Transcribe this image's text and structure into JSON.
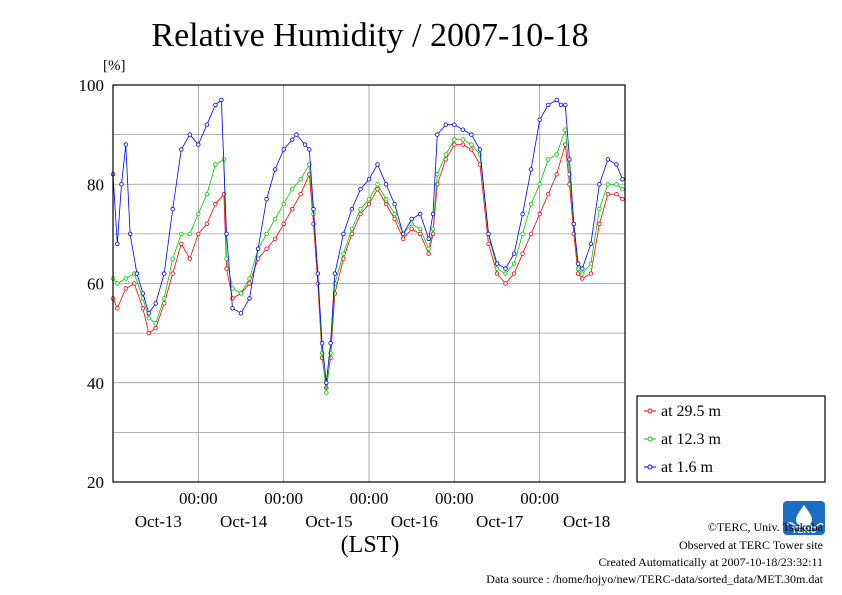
{
  "chart_data": {
    "type": "line",
    "title": "Relative Humidity / 2007-10-18",
    "ylabel": "[%]",
    "xlabel": "(LST)",
    "ylim": [
      20,
      100
    ],
    "yticks": [
      "20",
      "40",
      "60",
      "80",
      "100"
    ],
    "xlim": [
      0,
      6
    ],
    "xticks": [
      {
        "x": 1,
        "time": "00:00",
        "date": "Oct-13"
      },
      {
        "x": 2,
        "time": "00:00",
        "date": "Oct-14"
      },
      {
        "x": 3,
        "time": "00:00",
        "date": "Oct-15"
      },
      {
        "x": 4,
        "time": "00:00",
        "date": "Oct-16"
      },
      {
        "x": 5,
        "time": "00:00",
        "date": "Oct-17"
      }
    ],
    "extra_date_label": {
      "x": 5.55,
      "date": "Oct-18"
    },
    "grid": true,
    "legend_position": "lower-right-outside",
    "series": [
      {
        "name": "at 29.5 m",
        "color": "#ff0000",
        "points": [
          [
            0,
            57
          ],
          [
            0.05,
            55
          ],
          [
            0.15,
            59
          ],
          [
            0.25,
            60
          ],
          [
            0.35,
            55
          ],
          [
            0.42,
            50
          ],
          [
            0.5,
            51
          ],
          [
            0.6,
            56
          ],
          [
            0.7,
            62
          ],
          [
            0.8,
            68
          ],
          [
            0.9,
            65
          ],
          [
            1.0,
            70
          ],
          [
            1.1,
            72
          ],
          [
            1.2,
            76
          ],
          [
            1.3,
            78
          ],
          [
            1.33,
            63
          ],
          [
            1.4,
            57
          ],
          [
            1.5,
            58
          ],
          [
            1.6,
            60
          ],
          [
            1.7,
            65
          ],
          [
            1.8,
            67
          ],
          [
            1.9,
            69
          ],
          [
            2.0,
            72
          ],
          [
            2.1,
            75
          ],
          [
            2.2,
            78
          ],
          [
            2.3,
            82
          ],
          [
            2.35,
            72
          ],
          [
            2.4,
            60
          ],
          [
            2.45,
            45
          ],
          [
            2.5,
            39
          ],
          [
            2.55,
            45
          ],
          [
            2.6,
            58
          ],
          [
            2.7,
            65
          ],
          [
            2.8,
            70
          ],
          [
            2.9,
            74
          ],
          [
            3.0,
            76
          ],
          [
            3.1,
            79
          ],
          [
            3.2,
            76
          ],
          [
            3.3,
            73
          ],
          [
            3.4,
            69
          ],
          [
            3.5,
            71
          ],
          [
            3.6,
            70
          ],
          [
            3.7,
            66
          ],
          [
            3.75,
            70
          ],
          [
            3.8,
            80
          ],
          [
            3.9,
            85
          ],
          [
            4.0,
            88
          ],
          [
            4.1,
            88
          ],
          [
            4.2,
            87
          ],
          [
            4.3,
            84
          ],
          [
            4.4,
            68
          ],
          [
            4.5,
            62
          ],
          [
            4.6,
            60
          ],
          [
            4.7,
            62
          ],
          [
            4.8,
            66
          ],
          [
            4.9,
            70
          ],
          [
            5.0,
            74
          ],
          [
            5.1,
            78
          ],
          [
            5.2,
            82
          ],
          [
            5.3,
            88
          ],
          [
            5.35,
            80
          ],
          [
            5.4,
            70
          ],
          [
            5.45,
            62
          ],
          [
            5.5,
            61
          ],
          [
            5.6,
            62
          ],
          [
            5.7,
            72
          ],
          [
            5.8,
            78
          ],
          [
            5.9,
            78
          ],
          [
            5.97,
            77
          ]
        ]
      },
      {
        "name": "at 12.3 m",
        "color": "#00cc00",
        "points": [
          [
            0,
            61
          ],
          [
            0.05,
            60
          ],
          [
            0.15,
            61
          ],
          [
            0.25,
            62
          ],
          [
            0.35,
            57
          ],
          [
            0.42,
            53
          ],
          [
            0.5,
            52
          ],
          [
            0.6,
            57
          ],
          [
            0.7,
            65
          ],
          [
            0.8,
            70
          ],
          [
            0.9,
            70
          ],
          [
            1.0,
            74
          ],
          [
            1.1,
            78
          ],
          [
            1.2,
            84
          ],
          [
            1.3,
            85
          ],
          [
            1.33,
            65
          ],
          [
            1.4,
            59
          ],
          [
            1.5,
            58
          ],
          [
            1.6,
            61
          ],
          [
            1.7,
            67
          ],
          [
            1.8,
            70
          ],
          [
            1.9,
            73
          ],
          [
            2.0,
            76
          ],
          [
            2.1,
            79
          ],
          [
            2.2,
            81
          ],
          [
            2.3,
            84
          ],
          [
            2.35,
            74
          ],
          [
            2.4,
            62
          ],
          [
            2.45,
            46
          ],
          [
            2.5,
            38
          ],
          [
            2.55,
            46
          ],
          [
            2.6,
            60
          ],
          [
            2.7,
            66
          ],
          [
            2.8,
            71
          ],
          [
            2.9,
            75
          ],
          [
            3.0,
            77
          ],
          [
            3.1,
            80
          ],
          [
            3.2,
            77
          ],
          [
            3.3,
            74
          ],
          [
            3.4,
            70
          ],
          [
            3.5,
            72
          ],
          [
            3.6,
            71
          ],
          [
            3.7,
            67
          ],
          [
            3.75,
            71
          ],
          [
            3.8,
            82
          ],
          [
            3.9,
            86
          ],
          [
            4.0,
            89
          ],
          [
            4.1,
            89
          ],
          [
            4.2,
            88
          ],
          [
            4.3,
            86
          ],
          [
            4.4,
            70
          ],
          [
            4.5,
            63
          ],
          [
            4.6,
            62
          ],
          [
            4.7,
            64
          ],
          [
            4.8,
            70
          ],
          [
            4.9,
            76
          ],
          [
            5.0,
            80
          ],
          [
            5.1,
            85
          ],
          [
            5.2,
            86
          ],
          [
            5.3,
            91
          ],
          [
            5.35,
            82
          ],
          [
            5.4,
            72
          ],
          [
            5.45,
            63
          ],
          [
            5.5,
            62
          ],
          [
            5.6,
            64
          ],
          [
            5.7,
            75
          ],
          [
            5.8,
            80
          ],
          [
            5.9,
            80
          ],
          [
            5.97,
            79
          ]
        ]
      },
      {
        "name": "at 1.6 m",
        "color": "#0000ff",
        "points": [
          [
            0,
            82
          ],
          [
            0.05,
            68
          ],
          [
            0.1,
            80
          ],
          [
            0.15,
            88
          ],
          [
            0.2,
            70
          ],
          [
            0.28,
            62
          ],
          [
            0.35,
            58
          ],
          [
            0.42,
            54
          ],
          [
            0.5,
            56
          ],
          [
            0.6,
            62
          ],
          [
            0.7,
            75
          ],
          [
            0.8,
            87
          ],
          [
            0.9,
            90
          ],
          [
            1.0,
            88
          ],
          [
            1.1,
            92
          ],
          [
            1.2,
            96
          ],
          [
            1.27,
            97
          ],
          [
            1.33,
            70
          ],
          [
            1.4,
            55
          ],
          [
            1.5,
            54
          ],
          [
            1.6,
            57
          ],
          [
            1.7,
            67
          ],
          [
            1.8,
            77
          ],
          [
            1.9,
            83
          ],
          [
            2.0,
            87
          ],
          [
            2.1,
            89
          ],
          [
            2.15,
            90
          ],
          [
            2.25,
            88
          ],
          [
            2.3,
            87
          ],
          [
            2.35,
            75
          ],
          [
            2.4,
            62
          ],
          [
            2.45,
            48
          ],
          [
            2.5,
            40
          ],
          [
            2.55,
            48
          ],
          [
            2.6,
            62
          ],
          [
            2.7,
            70
          ],
          [
            2.8,
            75
          ],
          [
            2.9,
            79
          ],
          [
            3.0,
            81
          ],
          [
            3.1,
            84
          ],
          [
            3.2,
            80
          ],
          [
            3.3,
            76
          ],
          [
            3.4,
            70
          ],
          [
            3.5,
            73
          ],
          [
            3.6,
            74
          ],
          [
            3.7,
            69
          ],
          [
            3.75,
            74
          ],
          [
            3.8,
            90
          ],
          [
            3.9,
            92
          ],
          [
            4.0,
            92
          ],
          [
            4.1,
            91
          ],
          [
            4.2,
            90
          ],
          [
            4.3,
            87
          ],
          [
            4.4,
            70
          ],
          [
            4.5,
            64
          ],
          [
            4.6,
            63
          ],
          [
            4.7,
            66
          ],
          [
            4.8,
            74
          ],
          [
            4.9,
            83
          ],
          [
            5.0,
            93
          ],
          [
            5.1,
            96
          ],
          [
            5.2,
            97
          ],
          [
            5.25,
            96
          ],
          [
            5.3,
            96
          ],
          [
            5.35,
            85
          ],
          [
            5.4,
            72
          ],
          [
            5.45,
            64
          ],
          [
            5.5,
            63
          ],
          [
            5.6,
            68
          ],
          [
            5.7,
            80
          ],
          [
            5.8,
            85
          ],
          [
            5.9,
            84
          ],
          [
            5.97,
            81
          ]
        ]
      }
    ]
  },
  "footer": {
    "copyright": "©TERC, Univ. Tsukuba",
    "site": "Observed at TERC Tower site",
    "created": "Created Automatically at 2007-10-18/23:32:11",
    "source": "Data source : /home/hojyo/new/TERC-data/sorted_data/MET.30m.dat"
  },
  "logo": {
    "text": "TERC",
    "color": "#1a6fc4"
  }
}
